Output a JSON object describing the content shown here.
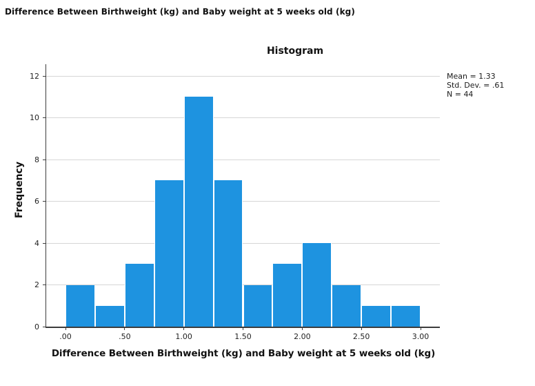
{
  "header": {
    "title": "Difference Between Birthweight (kg) and Baby weight at 5 weeks old (kg)"
  },
  "chart_data": {
    "type": "bar",
    "subtype": "histogram",
    "title": "Histogram",
    "xlabel": "Difference Between Birthweight (kg) and Baby weight at 5 weeks old (kg)",
    "ylabel": "Frequency",
    "bin_edges": [
      0.0,
      0.25,
      0.5,
      0.75,
      1.0,
      1.25,
      1.5,
      1.75,
      2.0,
      2.25,
      2.5,
      2.75,
      3.0
    ],
    "values": [
      2,
      1,
      3,
      7,
      11,
      7,
      2,
      3,
      4,
      2,
      1,
      1
    ],
    "x_tick_labels": [
      ".00",
      ".50",
      "1.00",
      "1.50",
      "2.00",
      "2.50",
      "3.00"
    ],
    "x_tick_values": [
      0,
      0.5,
      1.0,
      1.5,
      2.0,
      2.5,
      3.0
    ],
    "y_ticks": [
      0,
      2,
      4,
      6,
      8,
      10,
      12
    ],
    "xlim": [
      -0.16,
      3.16
    ],
    "ylim": [
      0,
      12.5
    ],
    "grid": "horizontal",
    "legend_position": "top-right",
    "annotations": [
      "Mean = 1.33",
      "Std. Dev. = .61",
      "N = 44"
    ],
    "bar_color": "#1E93E0",
    "grid_color": "#D6D6D6",
    "axis_color": "#3C3C3C"
  },
  "stats": {
    "mean_label": "Mean = 1.33",
    "stddev_label": "Std. Dev. = .61",
    "n_label": "N = 44"
  }
}
